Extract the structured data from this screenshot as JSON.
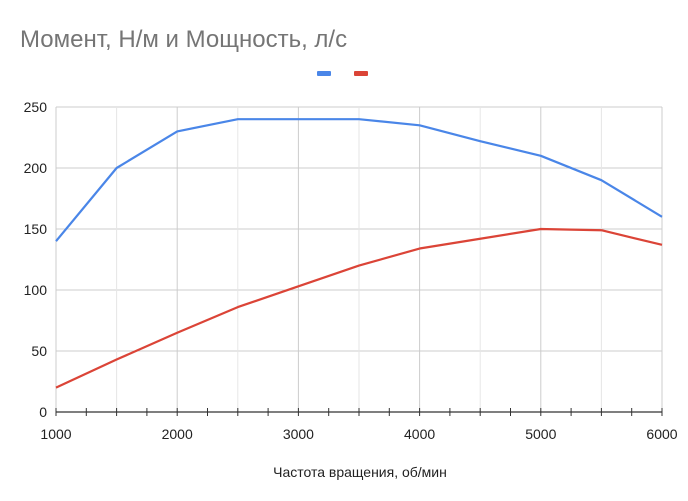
{
  "chart_data": {
    "type": "line",
    "title": "Момент, Н/м и Мощность, л/с",
    "xlabel": "Частота вращения, об/мин",
    "ylabel": "",
    "xlim": [
      1000,
      6000
    ],
    "ylim": [
      0,
      250
    ],
    "x_ticks": [
      1000,
      2000,
      3000,
      4000,
      5000,
      6000
    ],
    "y_ticks": [
      0,
      50,
      100,
      150,
      200,
      250
    ],
    "grid": true,
    "legend": "top-center",
    "series": [
      {
        "color": "#4a86e8",
        "points": [
          [
            1000,
            140
          ],
          [
            1500,
            200
          ],
          [
            2000,
            230
          ],
          [
            2500,
            240
          ],
          [
            3000,
            240
          ],
          [
            3500,
            240
          ],
          [
            4000,
            235
          ],
          [
            4500,
            222
          ],
          [
            5000,
            210
          ],
          [
            5500,
            190
          ],
          [
            6000,
            160
          ]
        ]
      },
      {
        "color": "#db4437",
        "points": [
          [
            1000,
            20
          ],
          [
            1500,
            43
          ],
          [
            2000,
            65
          ],
          [
            2500,
            86
          ],
          [
            3000,
            103
          ],
          [
            3500,
            120
          ],
          [
            4000,
            134
          ],
          [
            4500,
            142
          ],
          [
            5000,
            150
          ],
          [
            5500,
            149
          ],
          [
            6000,
            137
          ]
        ]
      }
    ]
  }
}
